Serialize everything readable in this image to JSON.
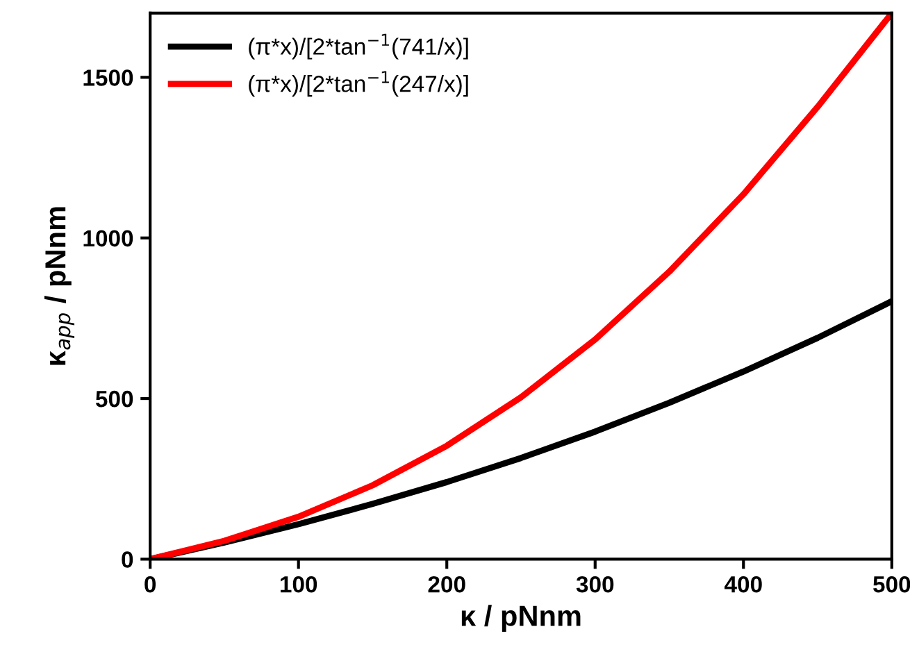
{
  "chart_data": {
    "type": "line",
    "xlabel": "κ / pNnm",
    "ylabel": "κ$_{app}$ / pNnm",
    "x": [
      0,
      50,
      100,
      150,
      200,
      250,
      300,
      350,
      400,
      450,
      500
    ],
    "series": [
      {
        "name": "(π*x)/[2*tan$^{−1}$(741/x)]",
        "color": "#000000",
        "values": [
          0,
          52,
          109,
          172,
          240,
          315,
          397,
          487,
          584,
          689,
          803
        ]
      },
      {
        "name": "(π*x)/[2*tan$^{−1}$(247/x)]",
        "color": "#ff0000",
        "values": [
          0,
          57,
          132,
          230,
          353,
          504,
          684,
          895,
          1136,
          1408,
          1700
        ]
      }
    ],
    "xlim": [
      0,
      500
    ],
    "ylim": [
      0,
      1700
    ],
    "xticks": [
      0,
      100,
      200,
      300,
      400,
      500
    ],
    "yticks": [
      0,
      500,
      1000,
      1500
    ],
    "grid": false,
    "legend": "top left",
    "marker": "none",
    "line_style": "solid"
  }
}
